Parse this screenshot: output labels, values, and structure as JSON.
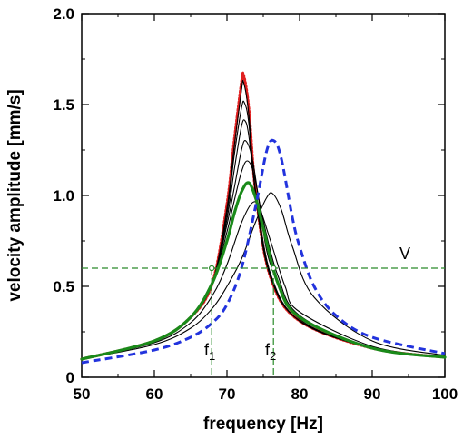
{
  "chart_data": {
    "type": "line",
    "title": "",
    "xlabel": "frequency [Hz]",
    "ylabel": "velocity amplitude [mm/s]",
    "xlim": [
      50,
      100
    ],
    "ylim": [
      0,
      2.0
    ],
    "xticks": [
      "50",
      "60",
      "70",
      "80",
      "90",
      "100"
    ],
    "yticks": [
      "0",
      "0.5",
      "1.0",
      "1.5",
      "2.0"
    ],
    "grid": false,
    "colors": {
      "red": "#e02020",
      "green": "#1a8a1a",
      "blue": "#2233dd",
      "black": "#000000",
      "guide": "#2a8a2a"
    },
    "series": [
      {
        "style": "red dotted",
        "color": "#e02020",
        "x": [
          50,
          60,
          65,
          68,
          70,
          71,
          72,
          72.3,
          73,
          74,
          76,
          80,
          90,
          100
        ],
        "y": [
          0.1,
          0.2,
          0.33,
          0.52,
          0.95,
          1.3,
          1.62,
          1.66,
          1.48,
          1.0,
          0.55,
          0.31,
          0.16,
          0.11
        ]
      },
      {
        "style": "black",
        "color": "#000000",
        "x": [
          50,
          60,
          65,
          68,
          70,
          71,
          72,
          72.3,
          73,
          74,
          76,
          80,
          90,
          100
        ],
        "y": [
          0.1,
          0.2,
          0.33,
          0.52,
          0.93,
          1.27,
          1.58,
          1.62,
          1.45,
          0.98,
          0.55,
          0.31,
          0.16,
          0.11
        ]
      },
      {
        "style": "black",
        "color": "#000000",
        "x": [
          50,
          60,
          65,
          68,
          70,
          71,
          72,
          72.4,
          73,
          74,
          76,
          80,
          90,
          100
        ],
        "y": [
          0.1,
          0.2,
          0.33,
          0.52,
          0.9,
          1.22,
          1.48,
          1.51,
          1.4,
          1.0,
          0.56,
          0.31,
          0.16,
          0.11
        ]
      },
      {
        "style": "black",
        "color": "#000000",
        "x": [
          50,
          60,
          65,
          68,
          70,
          71,
          72,
          72.5,
          73,
          74,
          76,
          80,
          90,
          100
        ],
        "y": [
          0.1,
          0.2,
          0.33,
          0.52,
          0.87,
          1.14,
          1.38,
          1.41,
          1.33,
          1.01,
          0.57,
          0.31,
          0.16,
          0.11
        ]
      },
      {
        "style": "black",
        "color": "#000000",
        "x": [
          50,
          60,
          65,
          68,
          70,
          71,
          72,
          72.6,
          73.5,
          74.5,
          76,
          80,
          90,
          100
        ],
        "y": [
          0.1,
          0.2,
          0.33,
          0.52,
          0.84,
          1.04,
          1.25,
          1.3,
          1.2,
          0.95,
          0.62,
          0.32,
          0.16,
          0.11
        ]
      },
      {
        "style": "black",
        "color": "#000000",
        "x": [
          50,
          60,
          65,
          68,
          70,
          71,
          72,
          72.8,
          73.7,
          75,
          77,
          80,
          90,
          100
        ],
        "y": [
          0.1,
          0.2,
          0.33,
          0.52,
          0.8,
          0.97,
          1.13,
          1.19,
          1.12,
          0.86,
          0.56,
          0.34,
          0.16,
          0.11
        ]
      },
      {
        "style": "green thick",
        "color": "#1a8a1a",
        "x": [
          50,
          60,
          65,
          68,
          70,
          71,
          72,
          73,
          74,
          75,
          77,
          80,
          90,
          100
        ],
        "y": [
          0.1,
          0.2,
          0.33,
          0.52,
          0.75,
          0.9,
          1.02,
          1.07,
          0.98,
          0.82,
          0.52,
          0.33,
          0.16,
          0.11
        ]
      },
      {
        "style": "black",
        "color": "#000000",
        "x": [
          50,
          60,
          65,
          68,
          70,
          72,
          73.5,
          74.5,
          76,
          78,
          80,
          90,
          100
        ],
        "y": [
          0.1,
          0.19,
          0.3,
          0.45,
          0.62,
          0.85,
          0.96,
          0.93,
          0.75,
          0.5,
          0.36,
          0.17,
          0.11
        ]
      },
      {
        "style": "black",
        "color": "#000000",
        "x": [
          50,
          60,
          65,
          68,
          70,
          72,
          74,
          75.5,
          76.3,
          77.5,
          79,
          82,
          90,
          100
        ],
        "y": [
          0.1,
          0.18,
          0.27,
          0.38,
          0.5,
          0.65,
          0.86,
          0.99,
          1.01,
          0.92,
          0.72,
          0.44,
          0.2,
          0.12
        ]
      },
      {
        "style": "blue dashed",
        "color": "#2233dd",
        "x": [
          50,
          60,
          65,
          68,
          70,
          72,
          74,
          75.5,
          76.5,
          77.5,
          79,
          80,
          82,
          85,
          90,
          100
        ],
        "y": [
          0.08,
          0.15,
          0.22,
          0.3,
          0.4,
          0.6,
          0.95,
          1.25,
          1.3,
          1.2,
          0.88,
          0.72,
          0.5,
          0.34,
          0.22,
          0.13
        ]
      }
    ],
    "annotations": {
      "threshold": {
        "y": 0.6,
        "label": "V"
      },
      "f1": {
        "x": 67.9,
        "label": "f",
        "sub": "1"
      },
      "f2": {
        "x": 76.4,
        "label": "f",
        "sub": "2"
      }
    }
  }
}
